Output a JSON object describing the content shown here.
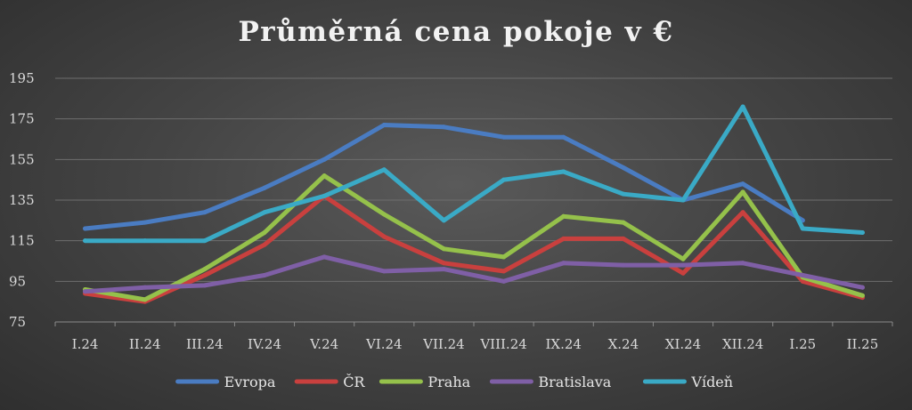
{
  "chart_data": {
    "type": "line",
    "title": "Průměrná cena pokoje v €",
    "xlabel": "",
    "ylabel": "",
    "categories": [
      "I.24",
      "II.24",
      "III.24",
      "IV.24",
      "V.24",
      "VI.24",
      "VII.24",
      "VIII.24",
      "IX.24",
      "X.24",
      "XI.24",
      "XII.24",
      "I.25",
      "II.25"
    ],
    "ylim": [
      75,
      195
    ],
    "yticks": [
      75,
      95,
      115,
      135,
      155,
      175,
      195
    ],
    "grid": true,
    "legend_position": "bottom",
    "series": [
      {
        "name": "Evropa",
        "color": "#4a7cc2",
        "values": [
          121,
          124,
          129,
          141,
          155,
          172,
          171,
          166,
          166,
          151,
          135,
          143,
          125,
          null
        ]
      },
      {
        "name": "ČR",
        "color": "#c9403e",
        "values": [
          89,
          85,
          98,
          113,
          137,
          117,
          104,
          100,
          116,
          116,
          99,
          129,
          95,
          87
        ]
      },
      {
        "name": "Praha",
        "color": "#95c14b",
        "values": [
          91,
          86,
          101,
          119,
          147,
          128,
          111,
          107,
          127,
          124,
          106,
          139,
          97,
          88
        ]
      },
      {
        "name": "Bratislava",
        "color": "#7f5fa6",
        "values": [
          90,
          92,
          93,
          98,
          107,
          100,
          101,
          95,
          104,
          103,
          103,
          104,
          98,
          92
        ]
      },
      {
        "name": "Vídeň",
        "color": "#3aaac6",
        "values": [
          115,
          115,
          115,
          129,
          137,
          150,
          125,
          145,
          149,
          138,
          135,
          181,
          121,
          119
        ]
      }
    ]
  }
}
